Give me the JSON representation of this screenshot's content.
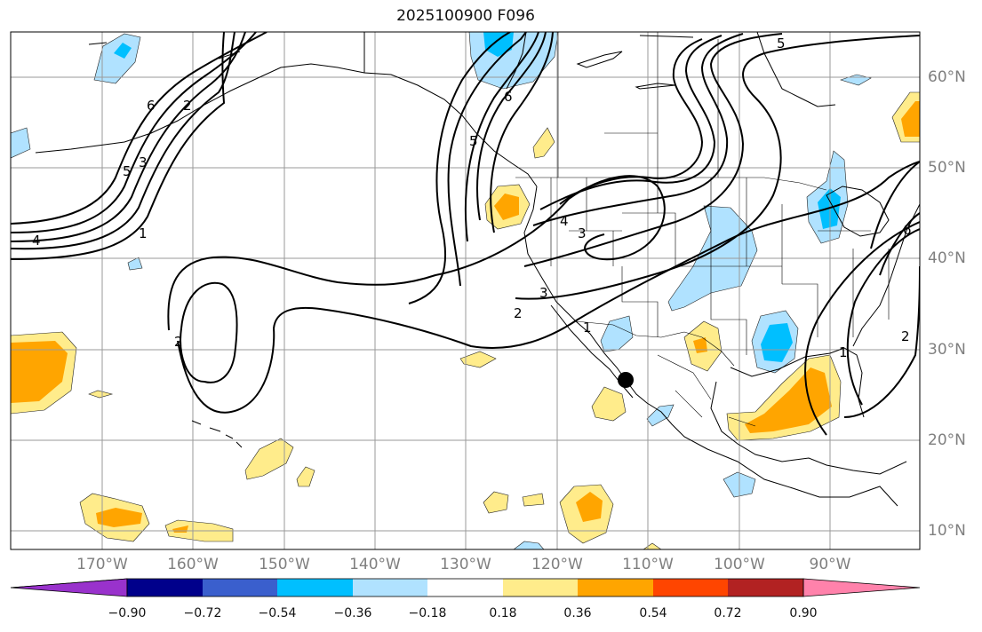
{
  "title": "2025100900 F096",
  "lat_labels": [
    "60°N",
    "50°N",
    "40°N",
    "30°N",
    "20°N",
    "10°N"
  ],
  "lon_labels": [
    "170°W",
    "160°W",
    "150°W",
    "140°W",
    "130°W",
    "120°W",
    "110°W",
    "100°W",
    "90°W"
  ],
  "colorbar": {
    "ticks": [
      "−0.90",
      "−0.72",
      "−0.54",
      "−0.36",
      "−0.18",
      "0.18",
      "0.36",
      "0.54",
      "0.72",
      "0.90"
    ],
    "colors": [
      "#9932cc",
      "#00008b",
      "#3a5fcd",
      "#00bfff",
      "#b0e2ff",
      "#ffffff",
      "#ffec8b",
      "#ffa500",
      "#ff4500",
      "#b22222",
      "#ff82ab"
    ]
  },
  "contour_labels": [
    "6",
    "2",
    "4",
    "5",
    "3",
    "1",
    "6",
    "5",
    "4",
    "3",
    "2",
    "2",
    "3",
    "1",
    "2",
    "1",
    "5",
    "6"
  ],
  "marker": {
    "name": "point-marker",
    "lat": 26.5,
    "lon": -112.2
  }
}
